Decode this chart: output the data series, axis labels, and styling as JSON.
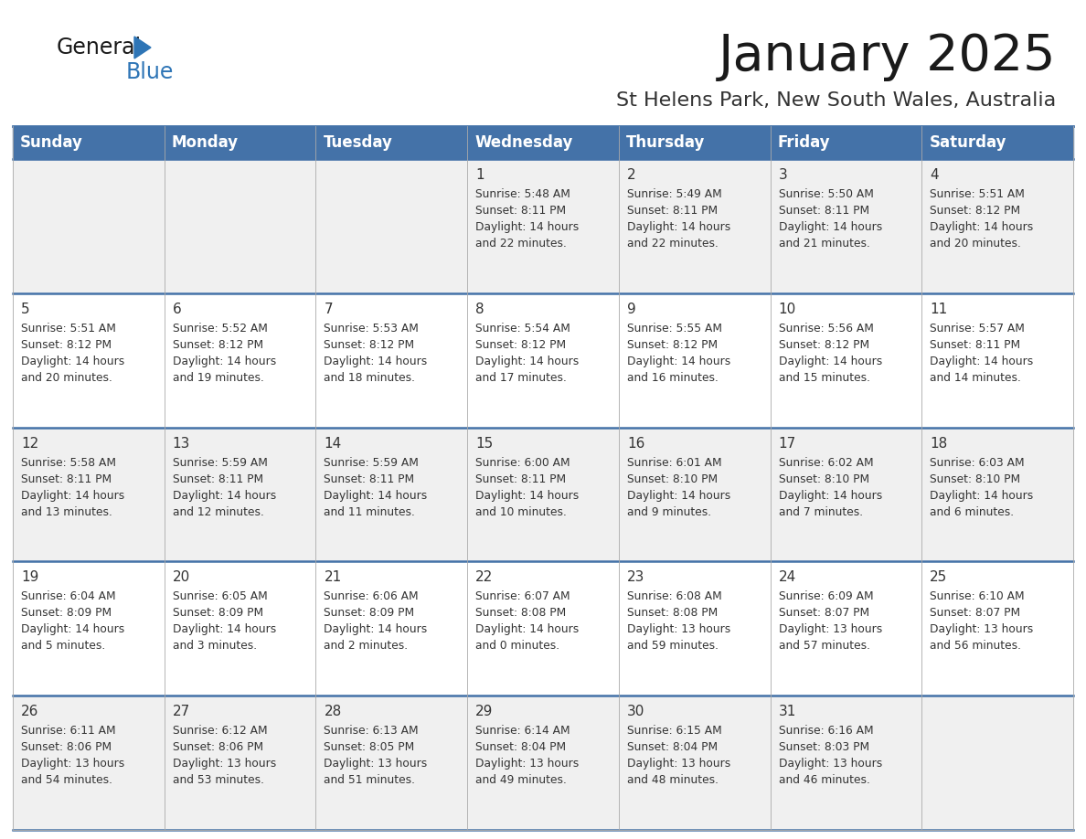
{
  "title": "January 2025",
  "subtitle": "St Helens Park, New South Wales, Australia",
  "days_of_week": [
    "Sunday",
    "Monday",
    "Tuesday",
    "Wednesday",
    "Thursday",
    "Friday",
    "Saturday"
  ],
  "header_bg": "#4472a8",
  "header_text": "#ffffff",
  "row_bg_even": "#f0f0f0",
  "row_bg_odd": "#ffffff",
  "divider_color": "#4472a8",
  "text_color": "#333333",
  "calendar_data": [
    [
      null,
      null,
      null,
      {
        "day": 1,
        "sunrise": "5:48 AM",
        "sunset": "8:11 PM",
        "daylight_hrs": 14,
        "daylight_min": 22
      },
      {
        "day": 2,
        "sunrise": "5:49 AM",
        "sunset": "8:11 PM",
        "daylight_hrs": 14,
        "daylight_min": 22
      },
      {
        "day": 3,
        "sunrise": "5:50 AM",
        "sunset": "8:11 PM",
        "daylight_hrs": 14,
        "daylight_min": 21
      },
      {
        "day": 4,
        "sunrise": "5:51 AM",
        "sunset": "8:12 PM",
        "daylight_hrs": 14,
        "daylight_min": 20
      }
    ],
    [
      {
        "day": 5,
        "sunrise": "5:51 AM",
        "sunset": "8:12 PM",
        "daylight_hrs": 14,
        "daylight_min": 20
      },
      {
        "day": 6,
        "sunrise": "5:52 AM",
        "sunset": "8:12 PM",
        "daylight_hrs": 14,
        "daylight_min": 19
      },
      {
        "day": 7,
        "sunrise": "5:53 AM",
        "sunset": "8:12 PM",
        "daylight_hrs": 14,
        "daylight_min": 18
      },
      {
        "day": 8,
        "sunrise": "5:54 AM",
        "sunset": "8:12 PM",
        "daylight_hrs": 14,
        "daylight_min": 17
      },
      {
        "day": 9,
        "sunrise": "5:55 AM",
        "sunset": "8:12 PM",
        "daylight_hrs": 14,
        "daylight_min": 16
      },
      {
        "day": 10,
        "sunrise": "5:56 AM",
        "sunset": "8:12 PM",
        "daylight_hrs": 14,
        "daylight_min": 15
      },
      {
        "day": 11,
        "sunrise": "5:57 AM",
        "sunset": "8:11 PM",
        "daylight_hrs": 14,
        "daylight_min": 14
      }
    ],
    [
      {
        "day": 12,
        "sunrise": "5:58 AM",
        "sunset": "8:11 PM",
        "daylight_hrs": 14,
        "daylight_min": 13
      },
      {
        "day": 13,
        "sunrise": "5:59 AM",
        "sunset": "8:11 PM",
        "daylight_hrs": 14,
        "daylight_min": 12
      },
      {
        "day": 14,
        "sunrise": "5:59 AM",
        "sunset": "8:11 PM",
        "daylight_hrs": 14,
        "daylight_min": 11
      },
      {
        "day": 15,
        "sunrise": "6:00 AM",
        "sunset": "8:11 PM",
        "daylight_hrs": 14,
        "daylight_min": 10
      },
      {
        "day": 16,
        "sunrise": "6:01 AM",
        "sunset": "8:10 PM",
        "daylight_hrs": 14,
        "daylight_min": 9
      },
      {
        "day": 17,
        "sunrise": "6:02 AM",
        "sunset": "8:10 PM",
        "daylight_hrs": 14,
        "daylight_min": 7
      },
      {
        "day": 18,
        "sunrise": "6:03 AM",
        "sunset": "8:10 PM",
        "daylight_hrs": 14,
        "daylight_min": 6
      }
    ],
    [
      {
        "day": 19,
        "sunrise": "6:04 AM",
        "sunset": "8:09 PM",
        "daylight_hrs": 14,
        "daylight_min": 5
      },
      {
        "day": 20,
        "sunrise": "6:05 AM",
        "sunset": "8:09 PM",
        "daylight_hrs": 14,
        "daylight_min": 3
      },
      {
        "day": 21,
        "sunrise": "6:06 AM",
        "sunset": "8:09 PM",
        "daylight_hrs": 14,
        "daylight_min": 2
      },
      {
        "day": 22,
        "sunrise": "6:07 AM",
        "sunset": "8:08 PM",
        "daylight_hrs": 14,
        "daylight_min": 0
      },
      {
        "day": 23,
        "sunrise": "6:08 AM",
        "sunset": "8:08 PM",
        "daylight_hrs": 13,
        "daylight_min": 59
      },
      {
        "day": 24,
        "sunrise": "6:09 AM",
        "sunset": "8:07 PM",
        "daylight_hrs": 13,
        "daylight_min": 57
      },
      {
        "day": 25,
        "sunrise": "6:10 AM",
        "sunset": "8:07 PM",
        "daylight_hrs": 13,
        "daylight_min": 56
      }
    ],
    [
      {
        "day": 26,
        "sunrise": "6:11 AM",
        "sunset": "8:06 PM",
        "daylight_hrs": 13,
        "daylight_min": 54
      },
      {
        "day": 27,
        "sunrise": "6:12 AM",
        "sunset": "8:06 PM",
        "daylight_hrs": 13,
        "daylight_min": 53
      },
      {
        "day": 28,
        "sunrise": "6:13 AM",
        "sunset": "8:05 PM",
        "daylight_hrs": 13,
        "daylight_min": 51
      },
      {
        "day": 29,
        "sunrise": "6:14 AM",
        "sunset": "8:04 PM",
        "daylight_hrs": 13,
        "daylight_min": 49
      },
      {
        "day": 30,
        "sunrise": "6:15 AM",
        "sunset": "8:04 PM",
        "daylight_hrs": 13,
        "daylight_min": 48
      },
      {
        "day": 31,
        "sunrise": "6:16 AM",
        "sunset": "8:03 PM",
        "daylight_hrs": 13,
        "daylight_min": 46
      },
      null
    ]
  ]
}
